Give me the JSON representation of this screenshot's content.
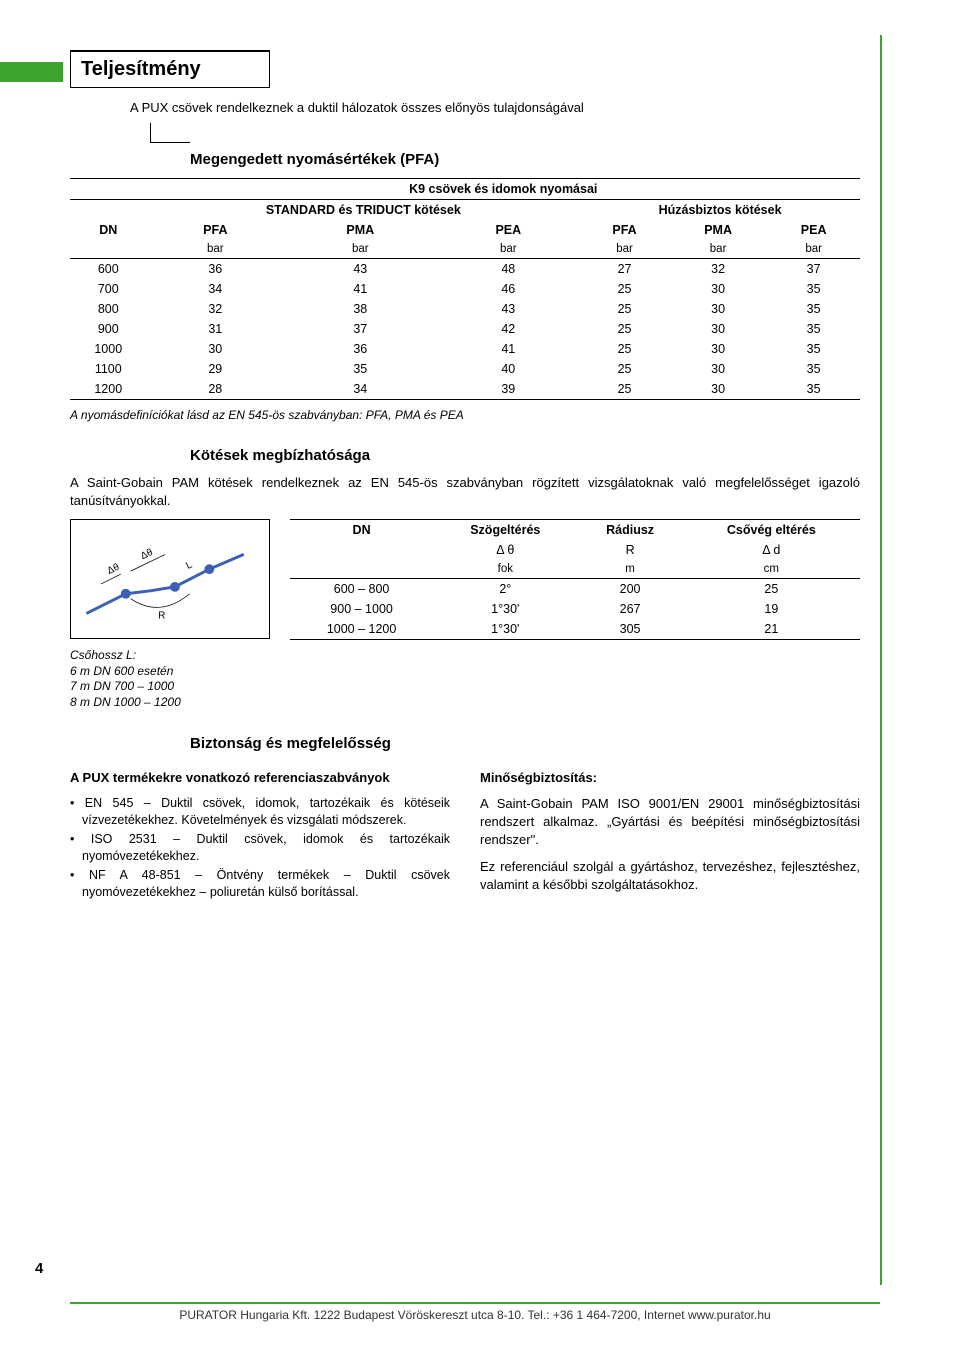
{
  "colors": {
    "accent": "#3ca62c",
    "pipe": "#3a5fb5"
  },
  "header": {
    "section_title": "Teljesítmény"
  },
  "intro": "A PUX csövek rendelkeznek a duktil hálozatok összes előnyös tulajdonságával",
  "s1": {
    "heading": "Megengedett nyomásértékek (PFA)",
    "super_header": "K9 csövek és idomok nyomásai",
    "group_left": "STANDARD és TRIDUCT kötések",
    "group_right": "Húzásbiztos kötések",
    "cols": [
      "DN",
      "PFA",
      "PMA",
      "PEA",
      "PFA",
      "PMA",
      "PEA"
    ],
    "units": [
      "",
      "bar",
      "bar",
      "bar",
      "bar",
      "bar",
      "bar"
    ],
    "rows": [
      [
        "600",
        "36",
        "43",
        "48",
        "27",
        "32",
        "37"
      ],
      [
        "700",
        "34",
        "41",
        "46",
        "25",
        "30",
        "35"
      ],
      [
        "800",
        "32",
        "38",
        "43",
        "25",
        "30",
        "35"
      ],
      [
        "900",
        "31",
        "37",
        "42",
        "25",
        "30",
        "35"
      ],
      [
        "1000",
        "30",
        "36",
        "41",
        "25",
        "30",
        "35"
      ],
      [
        "1100",
        "29",
        "35",
        "40",
        "25",
        "30",
        "35"
      ],
      [
        "1200",
        "28",
        "34",
        "39",
        "25",
        "30",
        "35"
      ]
    ],
    "footnote": "A nyomásdefiníciókat lásd az EN 545-ös szabványban: PFA, PMA és PEA"
  },
  "s2": {
    "heading": "Kötések megbízhatósága",
    "para": "A Saint-Gobain PAM kötések rendelkeznek az EN 545-ös szabványban rögzített vizsgálatoknak való megfelelősséget igazoló tanúsítványokkal.",
    "diagram": {
      "theta_labels": [
        "Δθ",
        "Δθ",
        "L",
        "R"
      ]
    },
    "table": {
      "cols": [
        "DN",
        "Szögeltérés",
        "Rádiusz",
        "Csővég eltérés"
      ],
      "subcols": [
        "",
        "Δ θ",
        "R",
        "Δ d"
      ],
      "units": [
        "",
        "fok",
        "m",
        "cm"
      ],
      "rows": [
        [
          "600 – 800",
          "2°",
          "200",
          "25"
        ],
        [
          "900 – 1000",
          "1°30'",
          "267",
          "19"
        ],
        [
          "1000 – 1200",
          "1°30'",
          "305",
          "21"
        ]
      ]
    },
    "legend": [
      "Csőhossz L:",
      "6 m DN 600 esetén",
      "7 m DN 700 – 1000",
      "8 m DN 1000 – 1200"
    ]
  },
  "s3": {
    "heading": "Biztonság és megfelelősség",
    "left_title": "A PUX termékekre vonatkozó referenciaszabványok",
    "left_bullets": [
      "EN 545 – Duktil csövek, idomok, tartozékaik és kötéseik vízvezetékekhez. Követelmények és vizsgálati módszerek.",
      "ISO 2531 – Duktil csövek, idomok és tartozékaik nyomóvezetékekhez.",
      "NF A 48-851 – Öntvény termékek – Duktil csövek nyomóvezetékekhez – poliuretán külső borítással."
    ],
    "right_title": "Minőségbiztosítás:",
    "right_para1": "A Saint-Gobain PAM ISO 9001/EN 29001 minőségbiztosítási rendszert alkalmaz. „Gyártási és beépítési minőségbiztosítási rendszer\".",
    "right_para2": "Ez referenciául szolgál a gyártáshoz, tervezéshez, fejlesztéshez, valamint a későbbi szolgáltatásokhoz."
  },
  "page_number": "4",
  "footer": "PURATOR Hungaria Kft. 1222 Budapest Vöröskereszt utca 8-10. Tel.: +36 1 464-7200, Internet www.purator.hu"
}
